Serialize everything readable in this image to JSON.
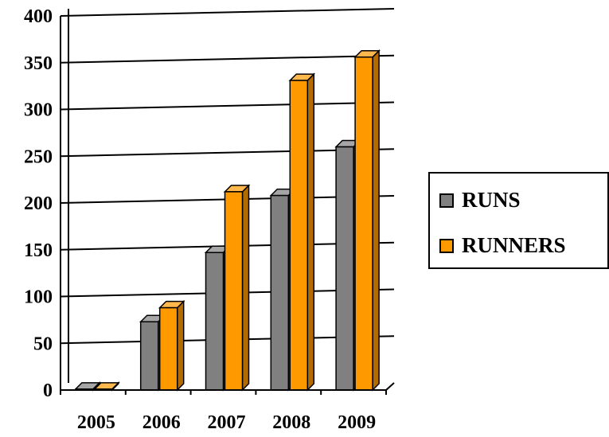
{
  "chart_data": {
    "type": "bar",
    "categories": [
      "2005",
      "2006",
      "2007",
      "2008",
      "2009"
    ],
    "series": [
      {
        "name": "RUNS",
        "values": [
          1,
          73,
          147,
          208,
          260
        ]
      },
      {
        "name": "RUNNERS",
        "values": [
          1,
          88,
          212,
          331,
          356
        ]
      }
    ],
    "ylim": [
      0,
      400
    ],
    "yticks": [
      "0",
      "50",
      "100",
      "150",
      "200",
      "250",
      "300",
      "350",
      "400"
    ],
    "grid": true,
    "legend_position": "right",
    "colors": {
      "RUNS": "#808080",
      "RUNNERS": "#ff9900"
    }
  },
  "legend": {
    "items": [
      {
        "label": "RUNS",
        "color": "#808080"
      },
      {
        "label": "RUNNERS",
        "color": "#ff9900"
      }
    ]
  }
}
